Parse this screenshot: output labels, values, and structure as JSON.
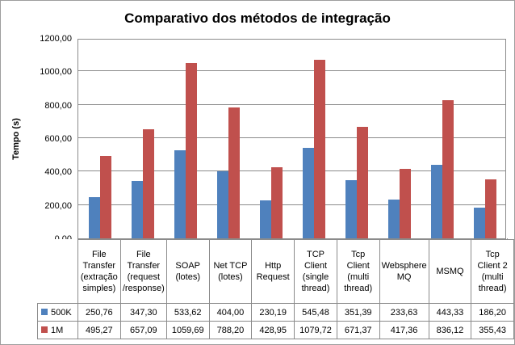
{
  "chart": {
    "title": "Comparativo dos métodos de integração",
    "ylabel": "Tempo (s)"
  },
  "chart_data": {
    "type": "bar",
    "title": "Comparativo dos métodos de integração",
    "ylabel": "Tempo (s)",
    "xlabel": "",
    "grid": true,
    "legend_position": "data-table-left",
    "ylim": [
      0,
      1200
    ],
    "ytick_step": 200,
    "ytick_labels": [
      "0,00",
      "200,00",
      "400,00",
      "600,00",
      "800,00",
      "1000,00",
      "1200,00"
    ],
    "categories": [
      "File Transfer (extração simples)",
      "File Transfer (request /response)",
      "SOAP (lotes)",
      "Net TCP (lotes)",
      "Http Request",
      "TCP Client (single thread)",
      "Tcp Client (multi thread)",
      "Websphere MQ",
      "MSMQ",
      "Tcp Client 2 (multi thread)"
    ],
    "series": [
      {
        "name": "500K",
        "color": "#4F81BD",
        "values": [
          250.76,
          347.3,
          533.62,
          404.0,
          230.19,
          545.48,
          351.39,
          233.63,
          443.33,
          186.2
        ],
        "labels": [
          "250,76",
          "347,30",
          "533,62",
          "404,00",
          "230,19",
          "545,48",
          "351,39",
          "233,63",
          "443,33",
          "186,20"
        ]
      },
      {
        "name": "1M",
        "color": "#C0504D",
        "values": [
          495.27,
          657.09,
          1059.69,
          788.2,
          428.95,
          1079.72,
          671.37,
          417.36,
          836.12,
          355.43
        ],
        "labels": [
          "495,27",
          "657,09",
          "1059,69",
          "788,20",
          "428,95",
          "1079,72",
          "671,37",
          "417,36",
          "836,12",
          "355,43"
        ]
      }
    ],
    "colors": {
      "grid": "#8b8b8b",
      "frame_border": "#9d9d9d",
      "text": "#000000"
    }
  }
}
